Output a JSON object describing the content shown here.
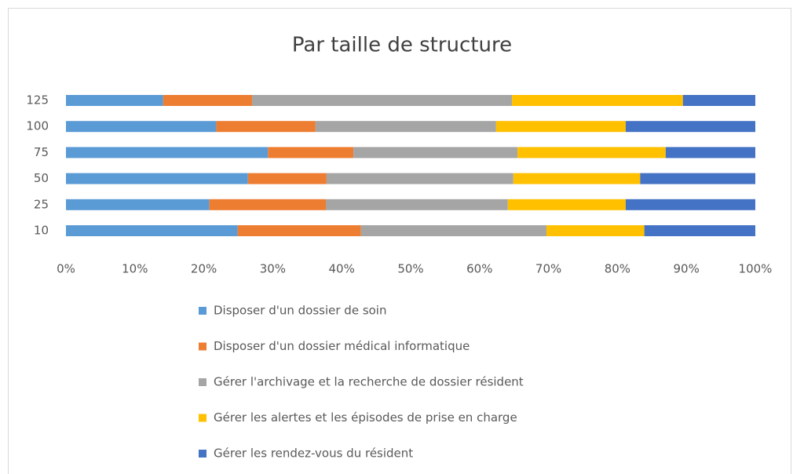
{
  "chart_data": {
    "type": "stacked-bar-horizontal",
    "title": "Par taille de structure",
    "categories": [
      "10",
      "25",
      "50",
      "75",
      "100",
      "125"
    ],
    "series": [
      {
        "name": "Disposer d'un dossier de soin",
        "color": "#5b9bd5",
        "values": [
          24.9,
          20.8,
          26.4,
          29.3,
          21.8,
          14.1
        ]
      },
      {
        "name": "Disposer d'un dossier médical informatique",
        "color": "#ed7d31",
        "values": [
          17.9,
          16.9,
          11.4,
          12.4,
          14.4,
          12.9
        ]
      },
      {
        "name": "Gérer l'archivage et la recherche de dossier résident",
        "color": "#a5a5a5",
        "values": [
          26.9,
          26.4,
          27.1,
          23.8,
          26.2,
          37.7
        ]
      },
      {
        "name": "Gérer les alertes et les épisodes de prise en charge",
        "color": "#ffc000",
        "values": [
          14.2,
          17.1,
          18.4,
          21.5,
          18.8,
          24.8
        ]
      },
      {
        "name": "Gérer les rendez-vous du résident",
        "color": "#4472c4",
        "values": [
          16.1,
          18.8,
          16.7,
          13.0,
          18.8,
          10.5
        ]
      }
    ],
    "xlim": [
      0,
      100
    ],
    "xticks": [
      {
        "value": 0,
        "label": "0%"
      },
      {
        "value": 10,
        "label": "10%"
      },
      {
        "value": 20,
        "label": "20%"
      },
      {
        "value": 30,
        "label": "30%"
      },
      {
        "value": 40,
        "label": "40%"
      },
      {
        "value": 50,
        "label": "50%"
      },
      {
        "value": 60,
        "label": "60%"
      },
      {
        "value": 70,
        "label": "70%"
      },
      {
        "value": 80,
        "label": "80%"
      },
      {
        "value": 90,
        "label": "90%"
      },
      {
        "value": 100,
        "label": "100%"
      }
    ],
    "legend": "bottom"
  }
}
